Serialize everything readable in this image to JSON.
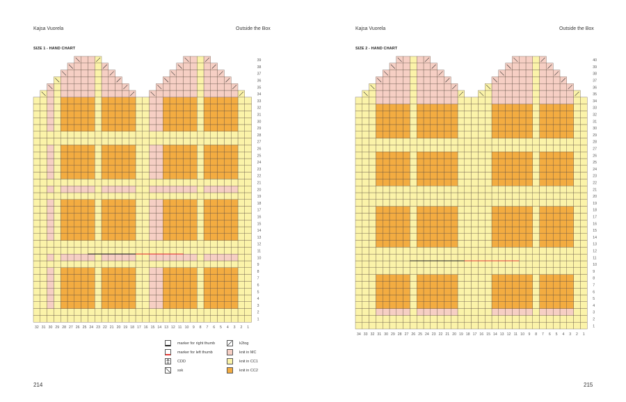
{
  "spread": {
    "left": {
      "author": "Kajsa Vuorela",
      "book_title": "Outside the Box",
      "chart_title": "SIZE 1 - HAND CHART",
      "page_number": "214"
    },
    "right": {
      "author": "Kajsa Vuorela",
      "book_title": "Outside the Box",
      "chart_title": "SIZE 2 - HAND CHART",
      "page_number": "215"
    }
  },
  "colors": {
    "mc": "#f6cfc4",
    "cc1": "#fbf3a9",
    "cc2": "#f3ac41",
    "grid": "#5a4a40",
    "right_thumb_marker": "#222222",
    "left_thumb_marker": "#e53935"
  },
  "legend": [
    {
      "symbol": "marker-right-thumb",
      "label": "marker for right thumb"
    },
    {
      "symbol": "marker-left-thumb",
      "label": "marker for left thumb"
    },
    {
      "symbol": "cdd-icon",
      "label": "CDD"
    },
    {
      "symbol": "ssk-icon",
      "label": "ssk"
    },
    {
      "symbol": "k2tog-icon",
      "label": "k2tog"
    },
    {
      "symbol": "swatch-mc",
      "label": "knit in MC"
    },
    {
      "symbol": "swatch-cc1",
      "label": "knit in CC1"
    },
    {
      "symbol": "swatch-cc2",
      "label": "knit in CC2"
    }
  ],
  "chart_data": [
    {
      "type": "knitting-chart",
      "title": "SIZE 1 - HAND CHART",
      "stitches": 32,
      "rows": 39,
      "row_labels": [
        "1",
        "2",
        "3",
        "4",
        "5",
        "6",
        "7",
        "8",
        "9",
        "10",
        "11",
        "12",
        "13",
        "14",
        "15",
        "16",
        "17",
        "18",
        "19",
        "20",
        "21",
        "22",
        "23",
        "24",
        "25",
        "26",
        "27",
        "28",
        "29",
        "30",
        "31",
        "32",
        "33",
        "34",
        "35",
        "36",
        "37",
        "38",
        "39"
      ],
      "stitch_labels": [
        "32",
        "31",
        "30",
        "29",
        "28",
        "27",
        "26",
        "25",
        "24",
        "23",
        "22",
        "21",
        "20",
        "19",
        "18",
        "17",
        "16",
        "15",
        "14",
        "13",
        "12",
        "11",
        "10",
        "9",
        "8",
        "7",
        "6",
        "5",
        "4",
        "3",
        "2",
        "1"
      ],
      "cc2_row_bands": [
        [
          3,
          8
        ],
        [
          13,
          18
        ],
        [
          22,
          26
        ],
        [
          29,
          33
        ]
      ],
      "cc2_stitch_bands": [
        [
          3,
          7
        ],
        [
          9,
          13
        ],
        [
          18,
          22
        ],
        [
          24,
          28
        ]
      ],
      "cc1_rows": [
        1,
        2,
        9,
        11,
        12,
        19,
        21,
        27,
        28
      ],
      "cc1_stitches": [
        1,
        2,
        8,
        16,
        17,
        23,
        29,
        31,
        32
      ],
      "peaks_left_stitch_range": [
        2,
        15
      ],
      "peaks_right_stitch_range": [
        18,
        31
      ],
      "thumb_marker_row": 10,
      "right_thumb_stitch_range": [
        24,
        18
      ],
      "left_thumb_stitch_range": [
        17,
        11
      ]
    },
    {
      "type": "knitting-chart",
      "title": "SIZE 2 - HAND CHART",
      "stitches": 34,
      "rows": 40,
      "row_labels": [
        "1",
        "2",
        "3",
        "4",
        "5",
        "6",
        "7",
        "8",
        "9",
        "10",
        "11",
        "12",
        "13",
        "14",
        "15",
        "16",
        "17",
        "18",
        "19",
        "20",
        "21",
        "22",
        "23",
        "24",
        "25",
        "26",
        "27",
        "28",
        "29",
        "30",
        "31",
        "32",
        "33",
        "34",
        "35",
        "36",
        "37",
        "38",
        "39",
        "40"
      ],
      "stitch_labels": [
        "34",
        "33",
        "32",
        "31",
        "30",
        "29",
        "28",
        "27",
        "26",
        "25",
        "24",
        "23",
        "22",
        "21",
        "20",
        "19",
        "18",
        "17",
        "16",
        "15",
        "14",
        "13",
        "12",
        "11",
        "10",
        "9",
        "8",
        "7",
        "6",
        "5",
        "4",
        "3",
        "2",
        "1"
      ],
      "cc2_row_bands": [
        [
          4,
          8
        ],
        [
          13,
          18
        ],
        [
          22,
          26
        ],
        [
          29,
          33
        ]
      ],
      "cc2_stitch_bands": [
        [
          3,
          7
        ],
        [
          9,
          14
        ],
        [
          20,
          25
        ],
        [
          27,
          31
        ]
      ],
      "cc1_rows": [
        1,
        2,
        9,
        10,
        11,
        12,
        19,
        20,
        21,
        27,
        28
      ],
      "cc1_stitches": [
        1,
        2,
        8,
        15,
        16,
        17,
        18,
        19,
        26,
        32,
        33,
        34
      ],
      "peaks_left_stitch_range": [
        2,
        16
      ],
      "peaks_right_stitch_range": [
        19,
        33
      ],
      "thumb_marker_row": 10,
      "right_thumb_stitch_range": [
        26,
        19
      ],
      "left_thumb_stitch_range": [
        18,
        11
      ]
    }
  ]
}
